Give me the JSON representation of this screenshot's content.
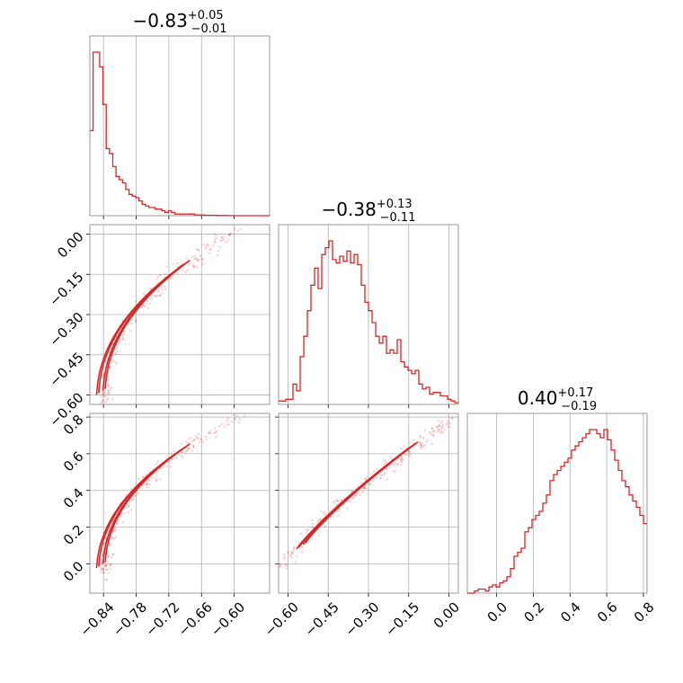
{
  "chart_data": {
    "type": "corner",
    "color": "#d62728",
    "params": [
      {
        "id": "p0",
        "range": [
          -0.865,
          -0.535
        ],
        "ticks": [
          -0.84,
          -0.78,
          -0.72,
          -0.66,
          -0.6
        ],
        "tick_labels": [
          "−0.84",
          "−0.78",
          "−0.72",
          "−0.66",
          "−0.60"
        ],
        "title": {
          "median": "−0.83",
          "plus": "+0.05",
          "minus": "−0.01"
        }
      },
      {
        "id": "p1",
        "range": [
          -0.635,
          0.035
        ],
        "ticks": [
          -0.6,
          -0.45,
          -0.3,
          -0.15,
          0.0
        ],
        "tick_labels": [
          "−0.60",
          "−0.45",
          "−0.30",
          "−0.15",
          "0.00"
        ],
        "title": {
          "median": "−0.38",
          "plus": "+0.13",
          "minus": "−0.11"
        }
      },
      {
        "id": "p2",
        "range": [
          -0.16,
          0.82
        ],
        "ticks": [
          0.0,
          0.2,
          0.4,
          0.6,
          0.8
        ],
        "tick_labels": [
          "0.0",
          "0.2",
          "0.4",
          "0.6",
          "0.8"
        ],
        "title": {
          "median": "0.40",
          "plus": "+0.17",
          "minus": "−0.19"
        }
      }
    ],
    "histograms": [
      {
        "param": "p0",
        "x_start": -0.865,
        "bin_width": 0.006,
        "counts": [
          52,
          100,
          100,
          91,
          68,
          41,
          38,
          30,
          24,
          22,
          20,
          16,
          13,
          12,
          11,
          9,
          7,
          6,
          5,
          5,
          4,
          4,
          3,
          2,
          3,
          2,
          1,
          1,
          1,
          1,
          1,
          1,
          0.5,
          0.5,
          0.5,
          0.3,
          0.3,
          0.2,
          0.2,
          0.1,
          0.1,
          0.1,
          0.05,
          0.05,
          0,
          0,
          0,
          0,
          0,
          0,
          0,
          0,
          0,
          0,
          0
        ]
      },
      {
        "param": "p1",
        "x_start": -0.635,
        "bin_width": 0.0134,
        "counts": [
          2,
          2,
          3,
          3,
          12,
          8,
          28,
          40,
          55,
          70,
          80,
          68,
          88,
          92,
          96,
          85,
          83,
          87,
          84,
          90,
          83,
          88,
          82,
          70,
          60,
          55,
          48,
          40,
          36,
          40,
          30,
          32,
          30,
          38,
          25,
          22,
          20,
          18,
          20,
          12,
          9,
          10,
          6,
          7,
          7,
          5,
          5,
          3,
          2,
          1
        ]
      },
      {
        "param": "p2",
        "x_start": -0.16,
        "bin_width": 0.0196,
        "counts": [
          0,
          0,
          1,
          2,
          2,
          1,
          3,
          4,
          3,
          5,
          6,
          8,
          12,
          18,
          20,
          22,
          30,
          32,
          36,
          38,
          40,
          44,
          48,
          55,
          58,
          60,
          62,
          64,
          66,
          70,
          72,
          74,
          76,
          78,
          80,
          80,
          78,
          76,
          80,
          75,
          70,
          65,
          60,
          55,
          52,
          48,
          45,
          42,
          38,
          34
        ]
      }
    ]
  }
}
